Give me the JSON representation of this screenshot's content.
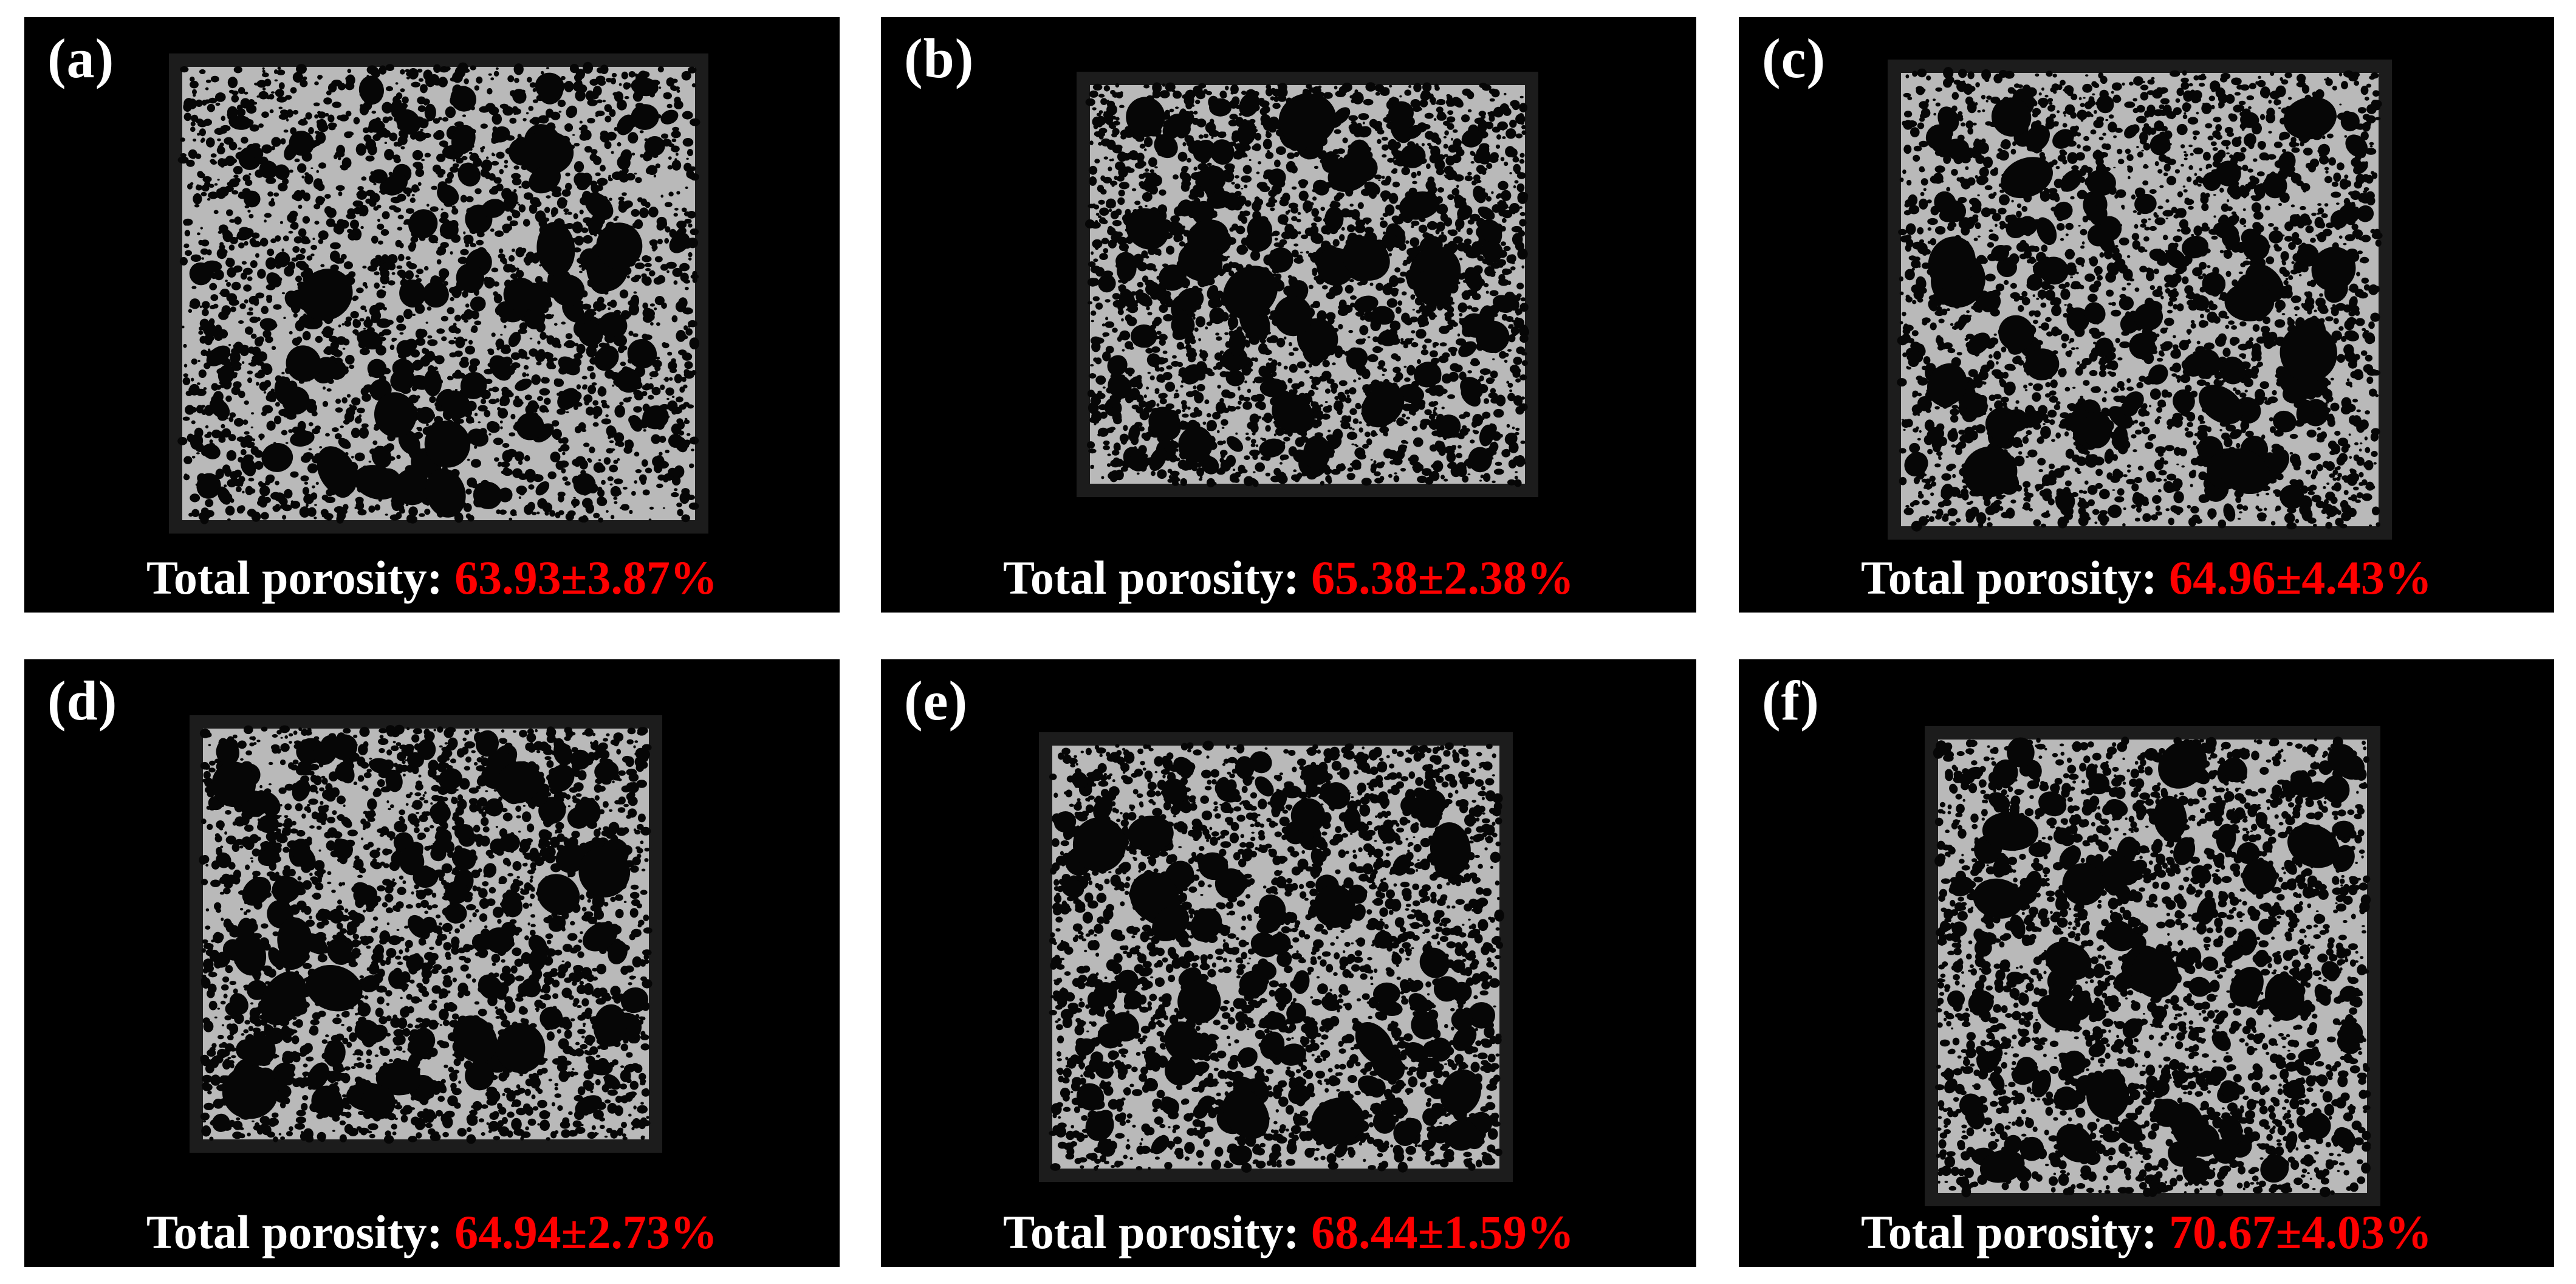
{
  "colors": {
    "background": "#ffffff",
    "panel": "#000000",
    "label_text": "#ffffff",
    "value_text": "#ff0000",
    "specimen": "#b9b9b9",
    "specimen_bg": "#1c1c1c"
  },
  "panels": [
    {
      "label": "(a)",
      "caption_label": "Total porosity:",
      "caption_value": "63.93±3.87%"
    },
    {
      "label": "(b)",
      "caption_label": "Total porosity:",
      "caption_value": "65.38±2.38%"
    },
    {
      "label": "(c)",
      "caption_label": "Total porosity:",
      "caption_value": "64.96±4.43%"
    },
    {
      "label": "(d)",
      "caption_label": "Total porosity:",
      "caption_value": "64.94±2.73%"
    },
    {
      "label": "(e)",
      "caption_label": "Total porosity:",
      "caption_value": "68.44±1.59%"
    },
    {
      "label": "(f)",
      "caption_label": "Total porosity:",
      "caption_value": "70.67±4.03%"
    }
  ]
}
